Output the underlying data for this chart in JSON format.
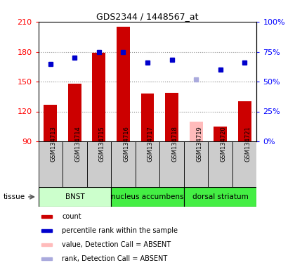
{
  "title": "GDS2344 / 1448567_at",
  "samples": [
    "GSM134713",
    "GSM134714",
    "GSM134715",
    "GSM134716",
    "GSM134717",
    "GSM134718",
    "GSM134719",
    "GSM134720",
    "GSM134721"
  ],
  "counts": [
    127,
    148,
    179,
    205,
    138,
    139,
    null,
    105,
    130
  ],
  "counts_absent": [
    null,
    null,
    null,
    null,
    null,
    null,
    110,
    null,
    null
  ],
  "ranks": [
    65,
    70,
    75,
    75,
    66,
    68,
    null,
    60,
    66
  ],
  "ranks_absent": [
    null,
    null,
    null,
    null,
    null,
    null,
    52,
    null,
    null
  ],
  "ylim_left": [
    90,
    210
  ],
  "ylim_right": [
    0,
    100
  ],
  "yticks_left": [
    90,
    120,
    150,
    180,
    210
  ],
  "yticks_right": [
    0,
    25,
    50,
    75,
    100
  ],
  "ytick_labels_right": [
    "0%",
    "25%",
    "50%",
    "75%",
    "100%"
  ],
  "grid_lines": [
    120,
    150,
    180
  ],
  "tissue_groups": [
    {
      "label": "BNST",
      "start": 0,
      "end": 3,
      "color": "#ccffcc"
    },
    {
      "label": "nucleus accumbens",
      "start": 3,
      "end": 6,
      "color": "#44ee44"
    },
    {
      "label": "dorsal striatum",
      "start": 6,
      "end": 9,
      "color": "#44ee44"
    }
  ],
  "bar_color": "#cc0000",
  "bar_color_absent": "#ffbbbb",
  "rank_color": "#0000cc",
  "rank_color_absent": "#aaaadd",
  "bar_width": 0.55,
  "grid_color": "#888888",
  "bg_color": "#ffffff",
  "sample_box_color": "#cccccc",
  "tissue_label": "tissue",
  "legend_items": [
    {
      "color": "#cc0000",
      "label": "count"
    },
    {
      "color": "#0000cc",
      "label": "percentile rank within the sample"
    },
    {
      "color": "#ffbbbb",
      "label": "value, Detection Call = ABSENT"
    },
    {
      "color": "#aaaadd",
      "label": "rank, Detection Call = ABSENT"
    }
  ]
}
